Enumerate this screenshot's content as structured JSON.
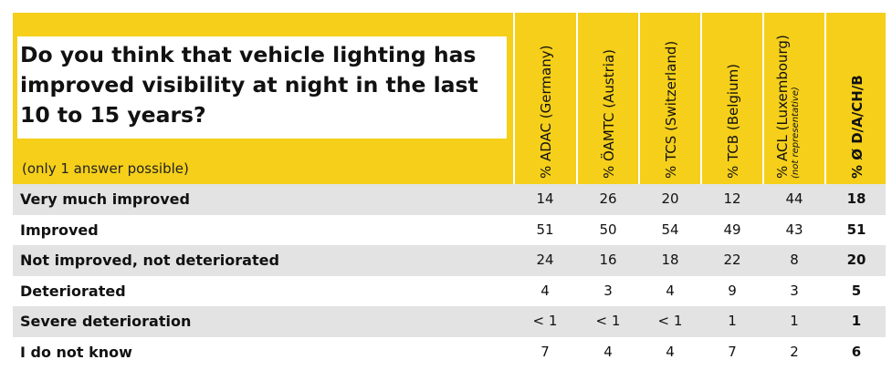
{
  "chart_data": {
    "type": "table",
    "title": "Do you think that vehicle lighting has improved visibility at night in the last 10 to 15 years?",
    "note": "(only 1 answer possible)",
    "columns": [
      {
        "label": "% ADAC (Germany)",
        "sub": ""
      },
      {
        "label": "% ÖAMTC (Austria)",
        "sub": ""
      },
      {
        "label": "% TCS (Switzerland)",
        "sub": ""
      },
      {
        "label": "% TCB (Belgium)",
        "sub": ""
      },
      {
        "label": "% ACL (Luxembourg)",
        "sub": "(not representative)"
      },
      {
        "label": "% Ø D/A/CH/B",
        "sub": ""
      }
    ],
    "rows": [
      {
        "label": "Very much improved",
        "values": [
          "14",
          "26",
          "20",
          "12",
          "44",
          "18"
        ]
      },
      {
        "label": "Improved",
        "values": [
          "51",
          "50",
          "54",
          "49",
          "43",
          "51"
        ]
      },
      {
        "label": "Not improved, not deteriorated",
        "values": [
          "24",
          "16",
          "18",
          "22",
          "8",
          "20"
        ]
      },
      {
        "label": "Deteriorated",
        "values": [
          "4",
          "3",
          "4",
          "9",
          "3",
          "5"
        ]
      },
      {
        "label": "Severe deterioration",
        "values": [
          "< 1",
          "< 1",
          "< 1",
          "1",
          "1",
          "1"
        ]
      },
      {
        "label": "I do not know",
        "values": [
          "7",
          "4",
          "4",
          "7",
          "2",
          "6"
        ]
      }
    ]
  },
  "colors": {
    "header_background": "#f5cf1a",
    "row_shading": "#e3e3e3"
  }
}
